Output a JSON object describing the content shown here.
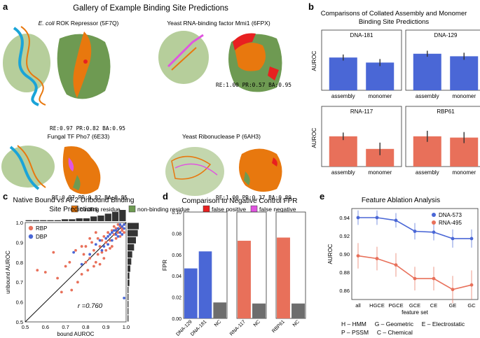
{
  "colors": {
    "blue": "#4a67d6",
    "red": "#e8705a",
    "gray": "#6d6d6d",
    "binding": "#e8780e",
    "nonbinding": "#6e9a52",
    "fp": "#e82020",
    "fn": "#e055e0",
    "dna": "#1aa4d8",
    "membrane": "#a9c58a"
  },
  "panel_a": {
    "letter": "a",
    "title": "Gallery of Example Binding Site Predictions",
    "proteins": [
      {
        "name_italic": "E. coli",
        "name": " ROK Repressor (5F7Q)",
        "metrics": "RE:0.97 PR:0.82 BA:0.95"
      },
      {
        "name": "Yeast RNA-binding factor Mmi1 (6FPX)",
        "metrics": "RE:1.00 PR:0.57 BA:0.95"
      },
      {
        "name": "Fungal TF Pho7 (6E33)",
        "metrics": "RE:0.97 PR:0.82 BA:0.85"
      },
      {
        "name": "Yeast Ribonuclease P (6AH3)",
        "metrics": "RE:1.00 PR:0.37 BA:0.89"
      }
    ],
    "legend": [
      "binding residue",
      "non-binding residue",
      "false positive",
      "false negative"
    ]
  },
  "panel_b": {
    "letter": "b",
    "title_line1": "Comparisons of Collated Assembly and Monomer",
    "title_line2": "Binding Site Predictions",
    "ylabel": "AUROC",
    "chart_data": [
      {
        "type": "bar",
        "title": "DNA-181",
        "categories": [
          "assembly",
          "monomer"
        ],
        "values": [
          0.93,
          0.91
        ],
        "errors": [
          0.012,
          0.014
        ],
        "ylim": [
          0.8,
          1.0
        ],
        "color": "blue"
      },
      {
        "type": "bar",
        "title": "DNA-129",
        "categories": [
          "assembly",
          "monomer"
        ],
        "values": [
          0.945,
          0.935
        ],
        "errors": [
          0.012,
          0.014
        ],
        "ylim": [
          0.8,
          1.0
        ],
        "color": "blue"
      },
      {
        "type": "bar",
        "title": "RNA-117",
        "categories": [
          "assembly",
          "monomer"
        ],
        "values": [
          0.92,
          0.87
        ],
        "errors": [
          0.015,
          0.025
        ],
        "ylim": [
          0.8,
          1.0
        ],
        "color": "red"
      },
      {
        "type": "bar",
        "title": "RBP61",
        "categories": [
          "assembly",
          "monomer"
        ],
        "values": [
          0.92,
          0.915
        ],
        "errors": [
          0.022,
          0.022
        ],
        "ylim": [
          0.8,
          1.0
        ],
        "color": "red"
      }
    ]
  },
  "panel_c": {
    "letter": "c",
    "title_line1": "Native Bound vs AF2 Unbound Binding",
    "title_line2": "Site Predictions",
    "annotation": "r =0.760",
    "chart_data": {
      "type": "scatter",
      "xlabel": "bound AUROC",
      "ylabel": "unbound AUROC",
      "xlim": [
        0.5,
        1.0
      ],
      "ylim": [
        0.5,
        1.0
      ],
      "xticks": [
        "0.5",
        "0.6",
        "0.7",
        "0.8",
        "0.9",
        "1.0"
      ],
      "yticks": [
        "0.5",
        "0.6",
        "0.7",
        "0.8",
        "0.9",
        "1.0"
      ],
      "fit_line": [
        [
          0.5,
          0.5
        ],
        [
          1.0,
          1.0
        ]
      ],
      "top_hist": [
        1,
        1,
        1,
        1,
        1,
        2,
        2,
        3,
        3,
        5,
        6,
        8,
        10,
        12
      ],
      "right_hist": [
        1,
        1,
        1,
        1,
        1,
        2,
        2,
        3,
        4,
        5,
        7,
        9,
        11,
        12
      ],
      "series": [
        {
          "name": "RBP",
          "color": "red",
          "points": [
            [
              0.56,
              0.76
            ],
            [
              0.6,
              0.75
            ],
            [
              0.64,
              0.85
            ],
            [
              0.66,
              0.72
            ],
            [
              0.68,
              0.65
            ],
            [
              0.7,
              0.78
            ],
            [
              0.72,
              0.8
            ],
            [
              0.73,
              0.66
            ],
            [
              0.75,
              0.86
            ],
            [
              0.76,
              0.7
            ],
            [
              0.78,
              0.74
            ],
            [
              0.79,
              0.84
            ],
            [
              0.8,
              0.88
            ],
            [
              0.81,
              0.76
            ],
            [
              0.82,
              0.82
            ],
            [
              0.83,
              0.9
            ],
            [
              0.84,
              0.86
            ],
            [
              0.85,
              0.8
            ],
            [
              0.86,
              0.92
            ],
            [
              0.87,
              0.88
            ],
            [
              0.88,
              0.85
            ],
            [
              0.89,
              0.93
            ],
            [
              0.9,
              0.9
            ],
            [
              0.91,
              0.95
            ],
            [
              0.92,
              0.91
            ],
            [
              0.93,
              0.96
            ],
            [
              0.94,
              0.94
            ],
            [
              0.95,
              0.97
            ],
            [
              0.96,
              0.95
            ],
            [
              0.97,
              0.98
            ],
            [
              0.98,
              0.96
            ],
            [
              0.99,
              0.99
            ],
            [
              0.97,
              0.93
            ],
            [
              0.95,
              0.92
            ],
            [
              0.93,
              0.88
            ],
            [
              0.9,
              0.86
            ],
            [
              0.88,
              0.91
            ],
            [
              0.86,
              0.84
            ],
            [
              0.84,
              0.78
            ],
            [
              0.82,
              0.92
            ],
            [
              0.8,
              0.8
            ],
            [
              0.78,
              0.88
            ],
            [
              0.96,
              0.99
            ],
            [
              0.98,
              0.97
            ],
            [
              0.99,
              0.95
            ],
            [
              0.94,
              0.98
            ],
            [
              0.92,
              0.87
            ],
            [
              0.89,
              0.82
            ],
            [
              0.87,
              0.79
            ],
            [
              0.85,
              0.95
            ]
          ]
        },
        {
          "name": "DBP",
          "color": "blue",
          "points": [
            [
              0.74,
              0.85
            ],
            [
              0.78,
              0.79
            ],
            [
              0.82,
              0.84
            ],
            [
              0.85,
              0.89
            ],
            [
              0.87,
              0.91
            ],
            [
              0.88,
              0.86
            ],
            [
              0.89,
              0.88
            ],
            [
              0.9,
              0.92
            ],
            [
              0.91,
              0.89
            ],
            [
              0.92,
              0.94
            ],
            [
              0.93,
              0.91
            ],
            [
              0.94,
              0.96
            ],
            [
              0.95,
              0.94
            ],
            [
              0.96,
              0.97
            ],
            [
              0.97,
              0.95
            ],
            [
              0.98,
              0.98
            ],
            [
              0.99,
              0.97
            ],
            [
              0.99,
              0.99
            ],
            [
              0.97,
              0.99
            ],
            [
              0.95,
              0.96
            ],
            [
              0.93,
              0.95
            ],
            [
              0.91,
              0.93
            ],
            [
              0.96,
              0.93
            ],
            [
              0.98,
              0.94
            ],
            [
              0.99,
              0.62
            ]
          ]
        }
      ]
    }
  },
  "panel_d": {
    "letter": "d",
    "title": "Comparison to Negative Control FPR",
    "chart_data": {
      "type": "bar",
      "ylabel": "FPR",
      "ylim": [
        0.0,
        0.1
      ],
      "yticks": [
        "0.00",
        "0.02",
        "0.04",
        "0.06",
        "0.08",
        "0.10"
      ],
      "groups": [
        {
          "categories": [
            "DNA-129",
            "DNA-181",
            "NC"
          ],
          "values": [
            0.047,
            0.063,
            0.015
          ],
          "colors": [
            "blue",
            "blue",
            "gray"
          ]
        },
        {
          "categories": [
            "RNA-117",
            "NC"
          ],
          "values": [
            0.073,
            0.014
          ],
          "colors": [
            "red",
            "gray"
          ]
        },
        {
          "categories": [
            "RBP61",
            "NC"
          ],
          "values": [
            0.076,
            0.014
          ],
          "colors": [
            "red",
            "gray"
          ]
        }
      ]
    }
  },
  "panel_e": {
    "letter": "e",
    "title": "Feature Ablation Analysis",
    "footnote_line1": "H – HMM     G – Geometric     E – Electrostatic",
    "footnote_line2": "P – PSSM     C – Chemical",
    "chart_data": {
      "type": "line",
      "xlabel": "feature set",
      "ylabel": "AUROC",
      "categories": [
        "all",
        "HGCE",
        "PGCE",
        "GCE",
        "CE",
        "GE",
        "GC"
      ],
      "ylim": [
        0.85,
        0.95
      ],
      "yticks": [
        "0.86",
        "0.88",
        "0.90",
        "0.92",
        "0.94"
      ],
      "series": [
        {
          "name": "DNA-573",
          "color": "blue",
          "values": [
            0.94,
            0.94,
            0.937,
            0.925,
            0.924,
            0.917,
            0.917
          ],
          "errors": [
            0.008,
            0.008,
            0.008,
            0.009,
            0.009,
            0.01,
            0.01
          ]
        },
        {
          "name": "RNA-495",
          "color": "red",
          "values": [
            0.898,
            0.895,
            0.888,
            0.873,
            0.873,
            0.861,
            0.866
          ],
          "errors": [
            0.014,
            0.013,
            0.013,
            0.013,
            0.013,
            0.015,
            0.016
          ]
        }
      ]
    }
  }
}
